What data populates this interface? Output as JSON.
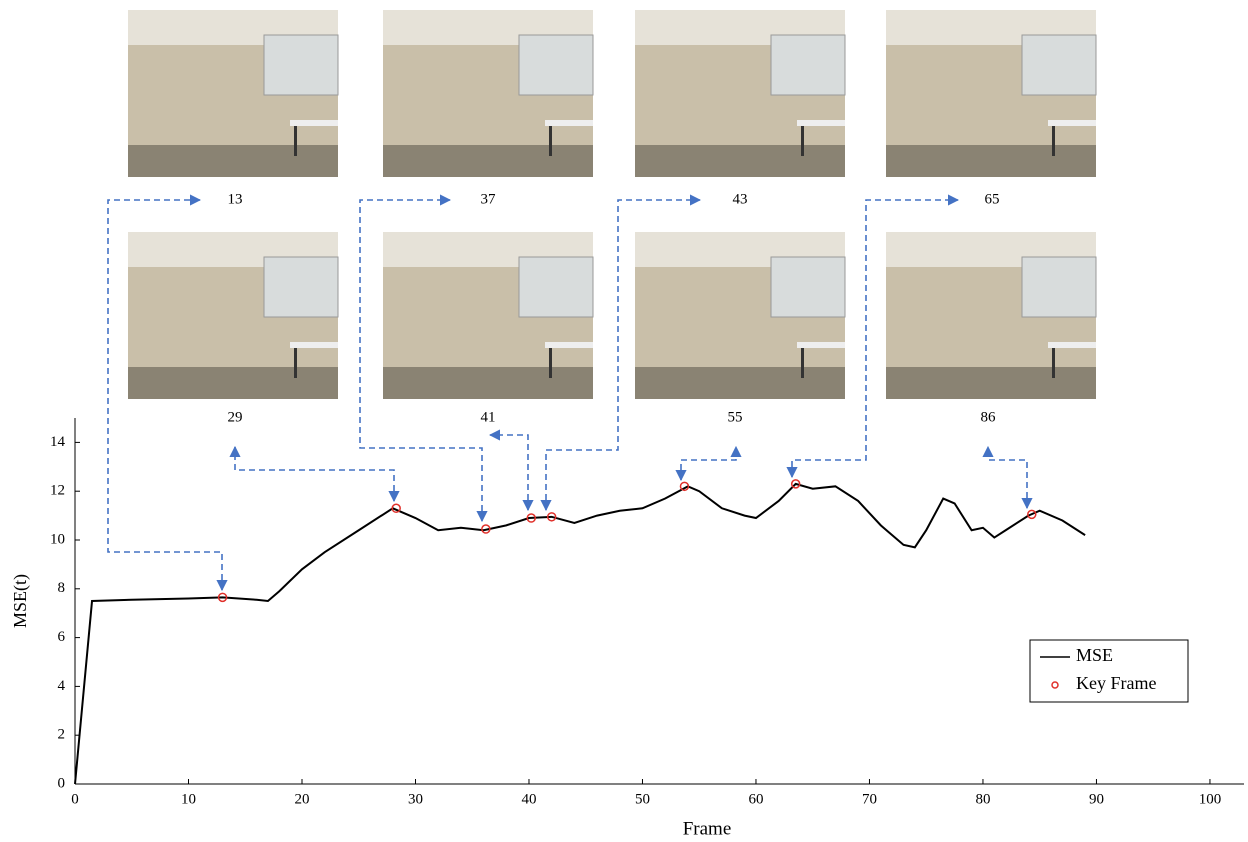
{
  "chart_data": {
    "type": "line",
    "xlabel": "Frame",
    "ylabel": "MSE(t)",
    "xlim": [
      0,
      103
    ],
    "ylim": [
      0,
      15
    ],
    "xticks": [
      0,
      10,
      20,
      30,
      40,
      50,
      60,
      70,
      80,
      90,
      100
    ],
    "yticks": [
      0,
      2,
      4,
      6,
      8,
      10,
      12,
      14
    ],
    "legend": "lower right",
    "annotations": [
      "13",
      "37",
      "43",
      "65",
      "29",
      "41",
      "55",
      "86"
    ],
    "series": [
      {
        "name": "MSE",
        "mode": "line",
        "color": "#000000",
        "x": [
          0,
          1.5,
          5,
          10,
          13,
          16,
          17,
          18,
          20,
          22,
          25,
          28,
          30,
          32,
          34,
          36,
          38,
          40,
          42,
          44,
          46,
          48,
          50,
          52,
          54,
          55,
          57,
          59,
          60,
          62,
          63.5,
          65,
          67,
          69,
          71,
          73,
          74,
          75,
          76.5,
          77.5,
          79,
          80,
          81,
          82,
          84,
          85,
          87,
          89
        ],
        "values": [
          0,
          7.5,
          7.55,
          7.6,
          7.65,
          7.55,
          7.5,
          7.9,
          8.8,
          9.5,
          10.4,
          11.3,
          10.9,
          10.4,
          10.5,
          10.4,
          10.6,
          10.9,
          10.95,
          10.7,
          11,
          11.2,
          11.3,
          11.7,
          12.2,
          12,
          11.3,
          11,
          10.9,
          11.6,
          12.3,
          12.1,
          12.2,
          11.6,
          10.6,
          9.8,
          9.7,
          10.4,
          11.7,
          11.5,
          10.4,
          10.5,
          10.1,
          10.4,
          11,
          11.2,
          10.8,
          10.2
        ]
      },
      {
        "name": "Key Frame",
        "mode": "markers",
        "color": "#e0302a",
        "x": [
          13,
          28.3,
          36.2,
          40.2,
          42,
          53.7,
          63.5,
          84.3
        ],
        "values": [
          7.65,
          11.3,
          10.45,
          10.9,
          10.95,
          12.2,
          12.3,
          11.05
        ]
      }
    ]
  }
}
